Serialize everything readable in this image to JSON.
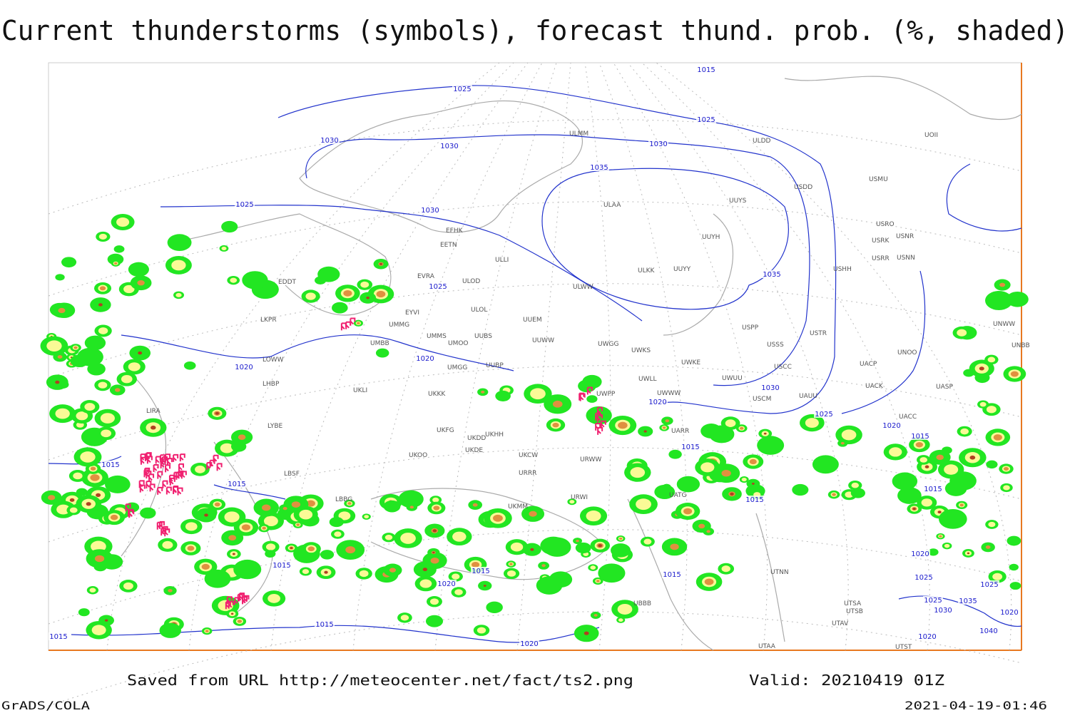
{
  "title": "Current thunderstorms (symbols), forecast thund. prob. (%, shaded)",
  "isobar_labels": [
    1015,
    1025,
    1025,
    1030,
    1030,
    1030,
    1035,
    1025,
    1030,
    1025,
    1035,
    1020,
    1020,
    1030,
    1020,
    1025,
    1020,
    1015,
    1015,
    1015,
    1015,
    1015,
    1015,
    1015,
    1015,
    1020,
    1015,
    1020,
    1025,
    1025,
    1035,
    1025,
    1030,
    1020,
    1040,
    1020,
    1015,
    1015,
    1020
  ],
  "stations": [
    "EDDT",
    "LKPR",
    "LOWW",
    "LHBP",
    "LIRA",
    "LYBE",
    "LBSF",
    "LBBG",
    "EVRA",
    "EYVI",
    "EFHK",
    "EETN",
    "ULLI",
    "ULOL",
    "ULOD",
    "UMMG",
    "UMMS",
    "UMOO",
    "UMBB",
    "UUBS",
    "UMGG",
    "UUBP",
    "UKKK",
    "UKLI",
    "UKHH",
    "UKFG",
    "UKDD",
    "UKDE",
    "UKCW",
    "UKOO",
    "ULAA",
    "UUYS",
    "UUYH",
    "ULWW",
    "UUYY",
    "ULKK",
    "UUEM",
    "UUWW",
    "UWGG",
    "UWKS",
    "UWKE",
    "UWLL",
    "UWWW",
    "UWUU",
    "USCM",
    "UAUU",
    "USCC",
    "USSS",
    "USTR",
    "USPP",
    "USHH",
    "UACP",
    "UACK",
    "UNOO",
    "UASP",
    "UACC",
    "UNBB",
    "UNWW",
    "USRR",
    "USNN",
    "USRK",
    "USNR",
    "USRO",
    "USMU",
    "USDD",
    "ULDD",
    "ULMM",
    "UOII",
    "UTNN",
    "UTSA",
    "UTSB",
    "UTAV",
    "UTST",
    "UTAA",
    "UATG",
    "UARR",
    "URWW",
    "URWI",
    "URRR",
    "UBBB",
    "UKMM",
    "UWPP"
  ],
  "footer": {
    "source": "Saved from URL http://meteocenter.net/fact/ts2.png",
    "valid": "Valid: 20210419 01Z",
    "software": "GrADS/COLA",
    "timestamp": "2021-04-19-01:46"
  }
}
